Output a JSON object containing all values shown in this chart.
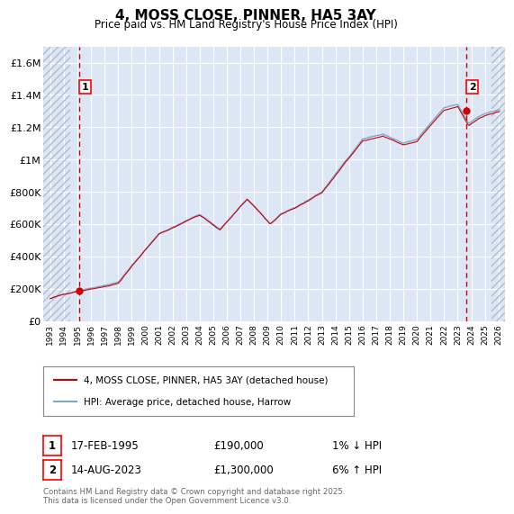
{
  "title": "4, MOSS CLOSE, PINNER, HA5 3AY",
  "subtitle": "Price paid vs. HM Land Registry's House Price Index (HPI)",
  "ylim": [
    0,
    1700000
  ],
  "xlim_year": [
    1992.5,
    2026.5
  ],
  "yticks": [
    0,
    200000,
    400000,
    600000,
    800000,
    1000000,
    1200000,
    1400000,
    1600000
  ],
  "ytick_labels": [
    "£0",
    "£200K",
    "£400K",
    "£600K",
    "£800K",
    "£1M",
    "£1.2M",
    "£1.4M",
    "£1.6M"
  ],
  "background_color": "#ffffff",
  "plot_bg_color": "#dce6f5",
  "grid_color": "#ffffff",
  "hatch_color": "#b0bcd0",
  "line1_color": "#cc0000",
  "line2_color": "#7aaad0",
  "marker1_year": 1995.12,
  "marker1_price": 190000,
  "marker2_year": 2023.62,
  "marker2_price": 1300000,
  "legend1": "4, MOSS CLOSE, PINNER, HA5 3AY (detached house)",
  "legend2": "HPI: Average price, detached house, Harrow",
  "transaction1_label": "1",
  "transaction1_date": "17-FEB-1995",
  "transaction1_price": "£190,000",
  "transaction1_hpi": "1% ↓ HPI",
  "transaction2_label": "2",
  "transaction2_date": "14-AUG-2023",
  "transaction2_price": "£1,300,000",
  "transaction2_hpi": "6% ↑ HPI",
  "footer": "Contains HM Land Registry data © Crown copyright and database right 2025.\nThis data is licensed under the Open Government Licence v3.0.",
  "hatch_left_end_year": 1994.5,
  "hatch_right_start_year": 2025.5
}
